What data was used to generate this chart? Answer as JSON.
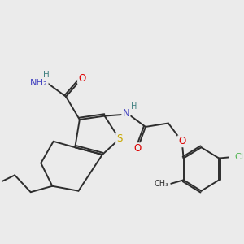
{
  "bg_color": "#ebebeb",
  "bond_color": "#2d2d2d",
  "S_color": "#c8a800",
  "N_color": "#4040c0",
  "O_color": "#dd0000",
  "Cl_color": "#4ab34a",
  "H_color": "#408080",
  "font_size": 8.0,
  "lw": 1.4,
  "xlim": [
    0,
    10
  ],
  "ylim": [
    0,
    10
  ]
}
